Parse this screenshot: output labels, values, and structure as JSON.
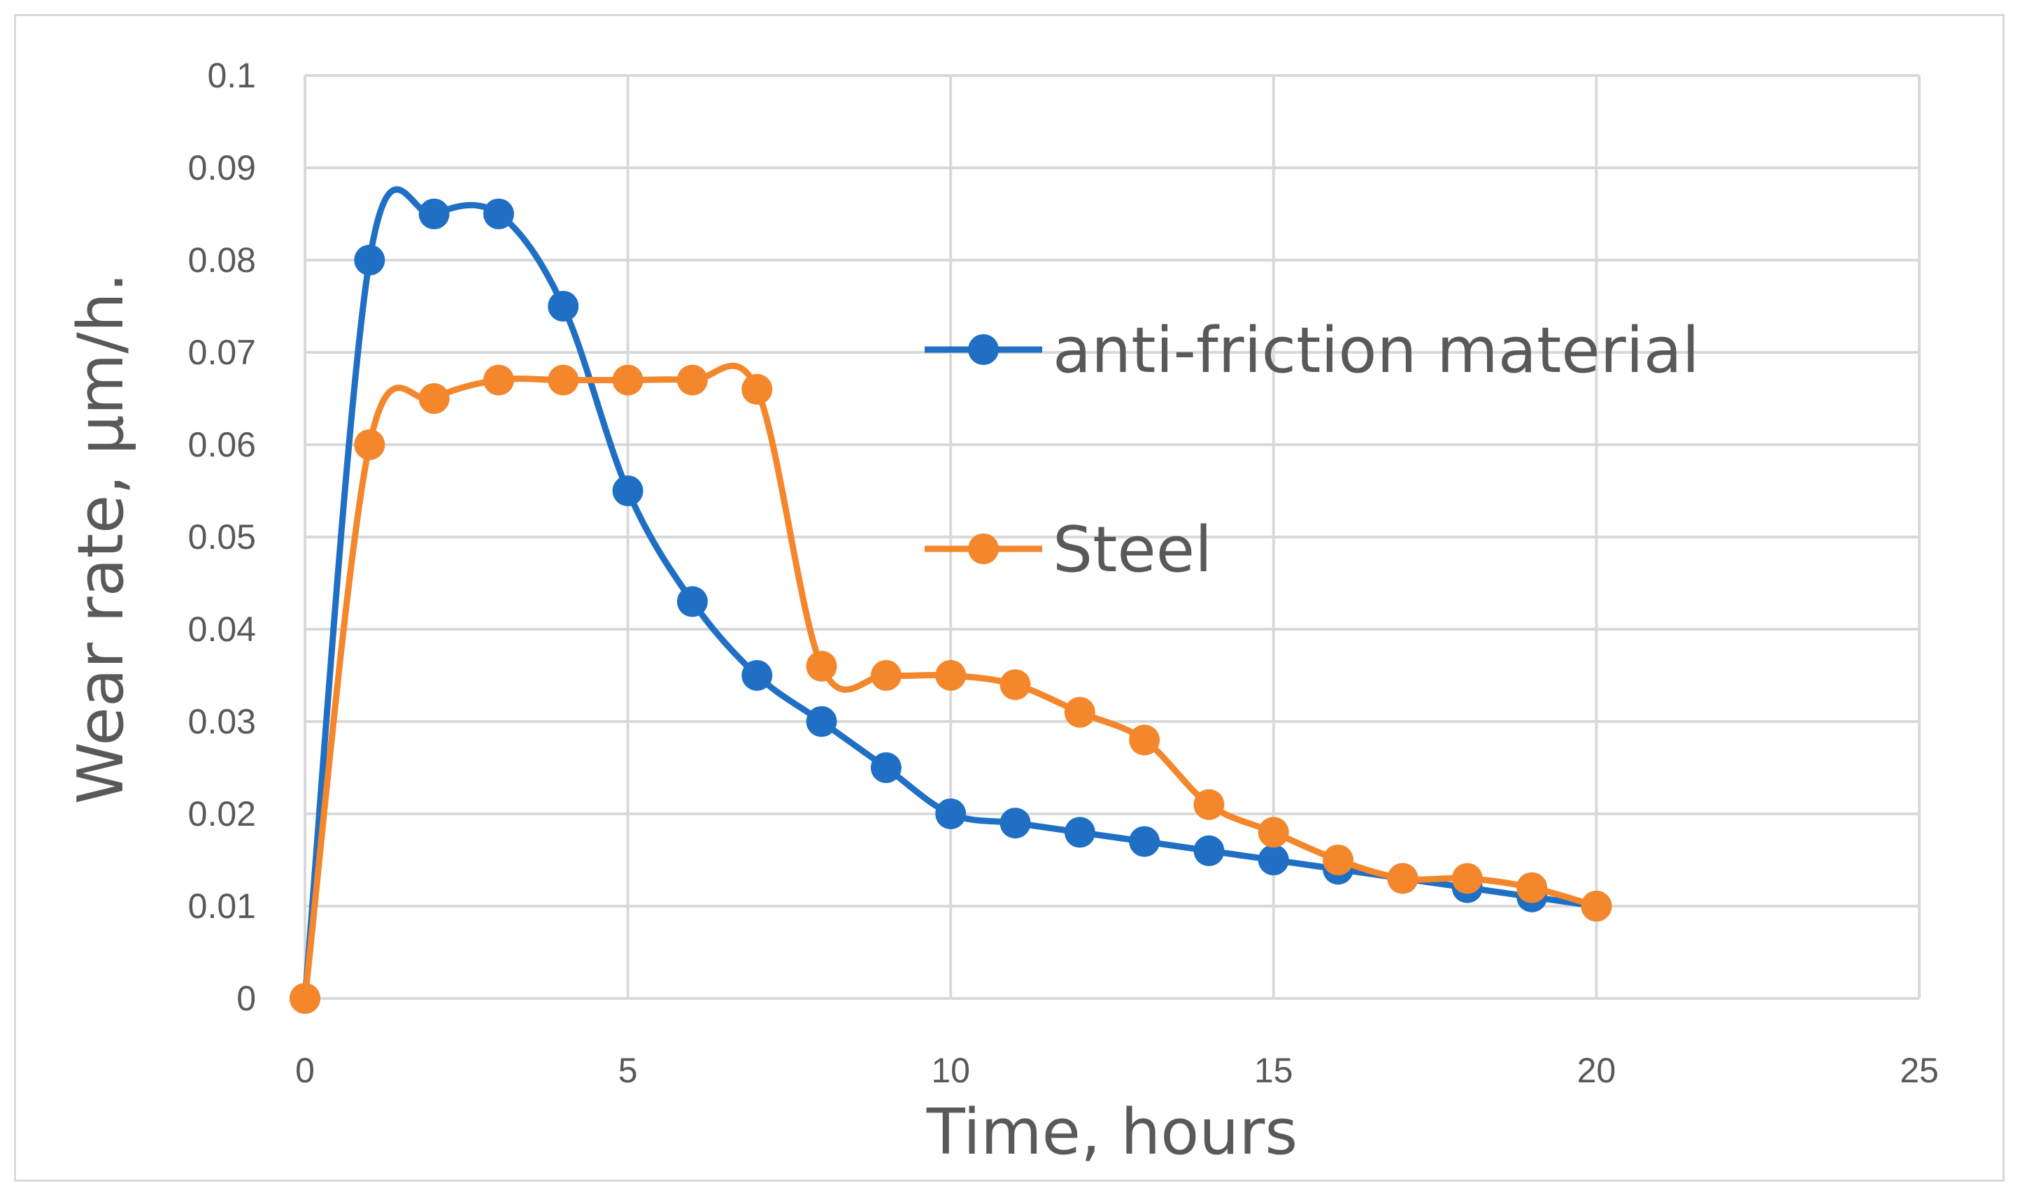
{
  "chart_data": {
    "type": "line",
    "smoothed": true,
    "xlabel": "Time, hours",
    "ylabel": "Wear rate, µm/h.",
    "xlim": [
      0,
      25
    ],
    "ylim": [
      0,
      0.1
    ],
    "x_ticks": [
      "0",
      "5",
      "10",
      "15",
      "20",
      "25"
    ],
    "y_ticks": [
      "0",
      "0.01",
      "0.02",
      "0.03",
      "0.04",
      "0.05",
      "0.06",
      "0.07",
      "0.08",
      "0.09",
      "0.1"
    ],
    "grid": true,
    "legend_position": "right",
    "x": [
      0,
      1,
      2,
      3,
      4,
      5,
      6,
      7,
      8,
      9,
      10,
      11,
      12,
      13,
      14,
      15,
      16,
      17,
      18,
      19,
      20
    ],
    "series": [
      {
        "name": "anti-friction material",
        "color": "#1f6fc4",
        "values": [
          0,
          0.08,
          0.085,
          0.085,
          0.075,
          0.055,
          0.043,
          0.035,
          0.03,
          0.025,
          0.02,
          0.019,
          0.018,
          0.017,
          0.016,
          0.015,
          0.014,
          0.013,
          0.012,
          0.011,
          0.01
        ]
      },
      {
        "name": "Steel",
        "color": "#f4862b",
        "values": [
          0,
          0.06,
          0.065,
          0.067,
          0.067,
          0.067,
          0.067,
          0.066,
          0.036,
          0.035,
          0.035,
          0.034,
          0.031,
          0.028,
          0.021,
          0.018,
          0.015,
          0.013,
          0.013,
          0.012,
          0.01
        ]
      }
    ]
  }
}
